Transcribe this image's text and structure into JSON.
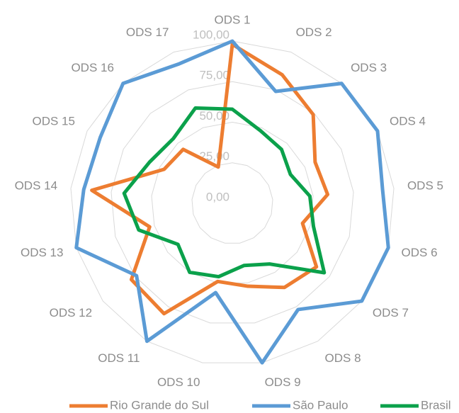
{
  "chart_data": {
    "type": "radar",
    "categories": [
      "ODS 1",
      "ODS 2",
      "ODS 3",
      "ODS 4",
      "ODS 5",
      "ODS 6",
      "ODS 7",
      "ODS 8",
      "ODS 9",
      "ODS 10",
      "ODS 11",
      "ODS 12",
      "ODS 13",
      "ODS 14",
      "ODS 15",
      "ODS 16",
      "ODS 17"
    ],
    "series": [
      {
        "name": "Rio Grande do Sul",
        "color": "#ed7d31",
        "values": [
          98,
          85,
          74,
          57,
          59,
          45,
          65,
          61,
          52,
          49,
          80,
          78,
          53,
          87,
          47,
          45,
          24
        ]
      },
      {
        "name": "São Paulo",
        "color": "#5b9bd5",
        "values": [
          100,
          74,
          100,
          100,
          93,
          100,
          100,
          77,
          100,
          56,
          100,
          74,
          100,
          92,
          91,
          100,
          92
        ]
      },
      {
        "name": "Brasil",
        "color": "#0ba14b",
        "values": [
          58,
          48,
          45,
          40,
          48,
          52,
          71,
          44,
          39,
          46,
          50,
          42,
          60,
          67,
          57,
          54,
          63
        ]
      }
    ],
    "ylim": [
      0,
      100
    ],
    "yticks": [
      {
        "value": 0,
        "label": "0,00"
      },
      {
        "value": 25,
        "label": "25,00"
      },
      {
        "value": 50,
        "label": "50,00"
      },
      {
        "value": 75,
        "label": "75,00"
      },
      {
        "value": 100,
        "label": "100,00"
      }
    ],
    "grid": true,
    "legend": "bottom"
  }
}
